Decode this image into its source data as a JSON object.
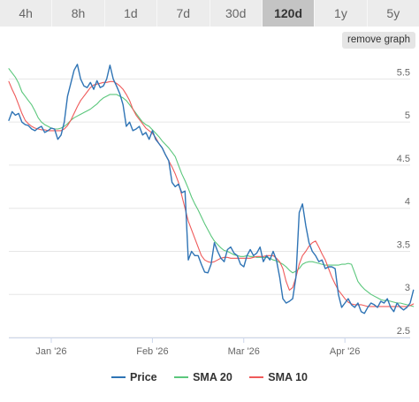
{
  "ranges": [
    {
      "label": "4h",
      "active": false
    },
    {
      "label": "8h",
      "active": false
    },
    {
      "label": "1d",
      "active": false
    },
    {
      "label": "7d",
      "active": false
    },
    {
      "label": "30d",
      "active": false
    },
    {
      "label": "120d",
      "active": true
    },
    {
      "label": "1y",
      "active": false
    },
    {
      "label": "5y",
      "active": false
    }
  ],
  "remove_graph_label": "remove graph",
  "chart_data": {
    "type": "line",
    "title": "",
    "xlabel": "",
    "ylabel": "",
    "ylim": [
      2.5,
      5.75
    ],
    "yticks": [
      2.5,
      3,
      3.5,
      4,
      4.5,
      5,
      5.5
    ],
    "ytick_labels": [
      "2.5",
      "3",
      "3.5",
      "4",
      "4.5",
      "5",
      "5.5"
    ],
    "xlim": [
      "2025-12-19",
      "2026-04-21"
    ],
    "xticks": [
      "2026-01-01",
      "2026-02-01",
      "2026-03-01",
      "2026-04-01"
    ],
    "xtick_labels": [
      "Jan '26",
      "Feb '26",
      "Mar '26",
      "Apr '26"
    ],
    "grid": true,
    "legend_position": "bottom",
    "x_start": "2025-12-19",
    "x_step_days": 1,
    "series": [
      {
        "name": "Price",
        "color": "#2f74b5",
        "values": [
          5.02,
          5.12,
          5.08,
          5.1,
          5.0,
          4.97,
          4.96,
          4.92,
          4.9,
          4.93,
          4.95,
          4.88,
          4.9,
          4.93,
          4.92,
          4.8,
          4.85,
          5.0,
          5.3,
          5.45,
          5.6,
          5.67,
          5.5,
          5.42,
          5.4,
          5.46,
          5.38,
          5.48,
          5.4,
          5.42,
          5.5,
          5.66,
          5.5,
          5.42,
          5.33,
          5.2,
          4.95,
          5.0,
          4.9,
          4.92,
          4.95,
          4.85,
          4.88,
          4.8,
          4.9,
          4.8,
          4.75,
          4.7,
          4.62,
          4.55,
          4.3,
          4.25,
          4.28,
          4.18,
          4.2,
          3.4,
          3.5,
          3.45,
          3.45,
          3.35,
          3.26,
          3.25,
          3.35,
          3.6,
          3.5,
          3.42,
          3.38,
          3.52,
          3.55,
          3.48,
          3.45,
          3.35,
          3.32,
          3.45,
          3.52,
          3.45,
          3.48,
          3.55,
          3.38,
          3.45,
          3.4,
          3.5,
          3.4,
          3.2,
          2.95,
          2.9,
          2.92,
          2.95,
          3.2,
          3.95,
          4.05,
          3.8,
          3.6,
          3.5,
          3.45,
          3.38,
          3.4,
          3.3,
          3.32,
          3.32,
          3.3,
          3.0,
          2.85,
          2.9,
          2.95,
          2.88,
          2.85,
          2.9,
          2.8,
          2.78,
          2.85,
          2.9,
          2.88,
          2.85,
          2.92,
          2.9,
          2.95,
          2.85,
          2.8,
          2.9,
          2.85,
          2.82,
          2.85,
          2.9,
          3.05
        ]
      },
      {
        "name": "SMA 20",
        "color": "#5bc77c",
        "values": [
          5.62,
          5.57,
          5.52,
          5.45,
          5.35,
          5.3,
          5.25,
          5.2,
          5.13,
          5.05,
          5.0,
          4.97,
          4.95,
          4.93,
          4.92,
          4.92,
          4.93,
          4.95,
          4.98,
          5.02,
          5.05,
          5.07,
          5.09,
          5.11,
          5.13,
          5.15,
          5.18,
          5.21,
          5.25,
          5.28,
          5.3,
          5.32,
          5.32,
          5.32,
          5.3,
          5.28,
          5.25,
          5.2,
          5.15,
          5.1,
          5.05,
          5.0,
          4.97,
          4.95,
          4.91,
          4.87,
          4.83,
          4.78,
          4.74,
          4.7,
          4.65,
          4.6,
          4.5,
          4.4,
          4.32,
          4.23,
          4.13,
          4.05,
          3.98,
          3.9,
          3.82,
          3.75,
          3.68,
          3.62,
          3.58,
          3.54,
          3.51,
          3.5,
          3.48,
          3.46,
          3.45,
          3.44,
          3.44,
          3.45,
          3.44,
          3.44,
          3.43,
          3.43,
          3.43,
          3.43,
          3.42,
          3.4,
          3.39,
          3.37,
          3.35,
          3.32,
          3.28,
          3.25,
          3.27,
          3.3,
          3.35,
          3.37,
          3.38,
          3.38,
          3.37,
          3.36,
          3.35,
          3.34,
          3.34,
          3.34,
          3.34,
          3.34,
          3.35,
          3.35,
          3.36,
          3.35,
          3.25,
          3.15,
          3.1,
          3.06,
          3.03,
          3.0,
          2.98,
          2.96,
          2.94,
          2.93,
          2.93,
          2.92,
          2.91,
          2.9,
          2.9,
          2.89,
          2.88,
          2.87,
          2.86
        ]
      },
      {
        "name": "SMA 10",
        "color": "#ef5a5a",
        "values": [
          5.47,
          5.38,
          5.3,
          5.2,
          5.1,
          5.02,
          4.98,
          4.95,
          4.93,
          4.92,
          4.91,
          4.91,
          4.9,
          4.9,
          4.9,
          4.9,
          4.9,
          4.92,
          4.96,
          5.02,
          5.1,
          5.18,
          5.25,
          5.3,
          5.35,
          5.4,
          5.43,
          5.44,
          5.45,
          5.46,
          5.46,
          5.47,
          5.47,
          5.45,
          5.42,
          5.38,
          5.32,
          5.25,
          5.15,
          5.08,
          5.03,
          4.98,
          4.93,
          4.9,
          4.87,
          4.82,
          4.75,
          4.7,
          4.62,
          4.55,
          4.48,
          4.4,
          4.3,
          4.15,
          4.0,
          3.85,
          3.75,
          3.65,
          3.55,
          3.45,
          3.4,
          3.38,
          3.37,
          3.38,
          3.4,
          3.42,
          3.43,
          3.43,
          3.42,
          3.42,
          3.42,
          3.42,
          3.42,
          3.42,
          3.42,
          3.43,
          3.44,
          3.44,
          3.44,
          3.45,
          3.45,
          3.45,
          3.42,
          3.38,
          3.3,
          3.15,
          3.05,
          3.08,
          3.2,
          3.35,
          3.45,
          3.5,
          3.56,
          3.6,
          3.62,
          3.55,
          3.47,
          3.4,
          3.3,
          3.2,
          3.12,
          3.05,
          3.0,
          2.95,
          2.91,
          2.89,
          2.88,
          2.88,
          2.88,
          2.87,
          2.86,
          2.86,
          2.86,
          2.86,
          2.86,
          2.86,
          2.86,
          2.86,
          2.86,
          2.86,
          2.86,
          2.86,
          2.86,
          2.87,
          2.89
        ]
      }
    ]
  }
}
